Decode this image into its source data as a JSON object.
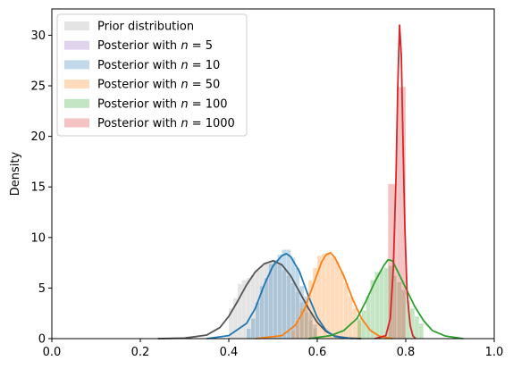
{
  "chart_data": {
    "type": "bar",
    "ylabel": "Density",
    "xlabel": "",
    "xlim": [
      0.0,
      1.0
    ],
    "ylim": [
      0,
      32.6
    ],
    "xticks": [
      "0.0",
      "0.2",
      "0.4",
      "0.6",
      "0.8",
      "1.0"
    ],
    "yticks": [
      "0",
      "5",
      "10",
      "15",
      "20",
      "25",
      "30"
    ],
    "grid": false,
    "legend_position": "top-left",
    "legend": [
      "Prior distribution",
      "Posterior with $n = 5$",
      "Posterior with $n = 10$",
      "Posterior with $n = 50$",
      "Posterior with $n = 100$",
      "Posterior with $n = 1000$"
    ],
    "legend_display": [
      {
        "prefix": "Prior distribution",
        "n": ""
      },
      {
        "prefix": "Posterior with ",
        "n": "5"
      },
      {
        "prefix": "Posterior with ",
        "n": "10"
      },
      {
        "prefix": "Posterior with ",
        "n": "50"
      },
      {
        "prefix": "Posterior with ",
        "n": "100"
      },
      {
        "prefix": "Posterior with ",
        "n": "1000"
      }
    ],
    "series": [
      {
        "color": "#9e9e9e",
        "line_color": "#555555",
        "bins": [
          [
            0.4,
            0.41,
            3.0
          ],
          [
            0.41,
            0.42,
            4.0
          ],
          [
            0.42,
            0.43,
            5.4
          ],
          [
            0.43,
            0.44,
            5.8
          ],
          [
            0.44,
            0.45,
            6.0
          ],
          [
            0.45,
            0.46,
            6.3
          ],
          [
            0.46,
            0.47,
            6.8
          ],
          [
            0.47,
            0.48,
            7.2
          ],
          [
            0.48,
            0.49,
            7.5
          ],
          [
            0.49,
            0.5,
            7.6
          ],
          [
            0.5,
            0.51,
            7.7
          ],
          [
            0.51,
            0.52,
            7.3
          ],
          [
            0.52,
            0.53,
            6.8
          ],
          [
            0.53,
            0.54,
            6.2
          ],
          [
            0.54,
            0.55,
            5.5
          ],
          [
            0.55,
            0.56,
            4.6
          ],
          [
            0.56,
            0.57,
            3.6
          ],
          [
            0.57,
            0.58,
            2.6
          ],
          [
            0.58,
            0.59,
            1.8
          ],
          [
            0.59,
            0.6,
            1.0
          ]
        ],
        "curve": [
          [
            0.24,
            0.0
          ],
          [
            0.3,
            0.05
          ],
          [
            0.35,
            0.35
          ],
          [
            0.38,
            1.1
          ],
          [
            0.4,
            2.2
          ],
          [
            0.42,
            3.7
          ],
          [
            0.44,
            5.3
          ],
          [
            0.46,
            6.6
          ],
          [
            0.48,
            7.4
          ],
          [
            0.5,
            7.7
          ],
          [
            0.52,
            7.3
          ],
          [
            0.54,
            6.2
          ],
          [
            0.56,
            4.6
          ],
          [
            0.58,
            3.0
          ],
          [
            0.6,
            1.6
          ],
          [
            0.62,
            0.7
          ],
          [
            0.64,
            0.25
          ],
          [
            0.67,
            0.05
          ],
          [
            0.7,
            0.0
          ]
        ]
      },
      {
        "color": "#9467bd",
        "line_color": "",
        "bins": [],
        "curve": []
      },
      {
        "color": "#1f77b4",
        "line_color": "#1f77b4",
        "bins": [
          [
            0.44,
            0.45,
            1.0
          ],
          [
            0.45,
            0.46,
            2.0
          ],
          [
            0.46,
            0.47,
            3.6
          ],
          [
            0.47,
            0.48,
            5.2
          ],
          [
            0.48,
            0.49,
            6.0
          ],
          [
            0.49,
            0.5,
            7.4
          ],
          [
            0.5,
            0.51,
            7.8
          ],
          [
            0.51,
            0.52,
            8.3
          ],
          [
            0.52,
            0.53,
            8.8
          ],
          [
            0.53,
            0.54,
            8.8
          ],
          [
            0.54,
            0.55,
            8.0
          ],
          [
            0.55,
            0.56,
            7.0
          ],
          [
            0.56,
            0.57,
            5.2
          ],
          [
            0.57,
            0.58,
            4.2
          ],
          [
            0.58,
            0.59,
            2.6
          ],
          [
            0.59,
            0.6,
            1.4
          ]
        ],
        "curve": [
          [
            0.35,
            0.0
          ],
          [
            0.4,
            0.3
          ],
          [
            0.44,
            1.5
          ],
          [
            0.46,
            3.0
          ],
          [
            0.48,
            5.3
          ],
          [
            0.5,
            7.2
          ],
          [
            0.52,
            8.2
          ],
          [
            0.53,
            8.4
          ],
          [
            0.54,
            8.1
          ],
          [
            0.56,
            6.6
          ],
          [
            0.58,
            4.2
          ],
          [
            0.6,
            2.1
          ],
          [
            0.62,
            0.8
          ],
          [
            0.64,
            0.2
          ],
          [
            0.68,
            0.0
          ]
        ]
      },
      {
        "color": "#ff7f0e",
        "line_color": "#ff7f0e",
        "bins": [
          [
            0.54,
            0.55,
            0.8
          ],
          [
            0.55,
            0.56,
            1.8
          ],
          [
            0.56,
            0.57,
            3.0
          ],
          [
            0.57,
            0.58,
            3.6
          ],
          [
            0.58,
            0.59,
            5.8
          ],
          [
            0.59,
            0.6,
            7.0
          ],
          [
            0.6,
            0.61,
            8.2
          ],
          [
            0.61,
            0.62,
            8.4
          ],
          [
            0.62,
            0.63,
            8.5
          ],
          [
            0.63,
            0.64,
            8.1
          ],
          [
            0.64,
            0.65,
            7.6
          ],
          [
            0.65,
            0.66,
            6.6
          ],
          [
            0.66,
            0.67,
            5.5
          ],
          [
            0.67,
            0.68,
            4.2
          ],
          [
            0.68,
            0.69,
            3.0
          ],
          [
            0.69,
            0.7,
            1.8
          ]
        ],
        "curve": [
          [
            0.46,
            0.0
          ],
          [
            0.52,
            0.3
          ],
          [
            0.55,
            1.3
          ],
          [
            0.57,
            2.8
          ],
          [
            0.59,
            5.2
          ],
          [
            0.61,
            7.6
          ],
          [
            0.62,
            8.3
          ],
          [
            0.63,
            8.5
          ],
          [
            0.64,
            8.0
          ],
          [
            0.66,
            6.2
          ],
          [
            0.68,
            3.9
          ],
          [
            0.7,
            2.0
          ],
          [
            0.72,
            0.8
          ],
          [
            0.74,
            0.25
          ],
          [
            0.77,
            0.0
          ]
        ]
      },
      {
        "color": "#2ca02c",
        "line_color": "#2ca02c",
        "bins": [
          [
            0.69,
            0.7,
            2.0
          ],
          [
            0.7,
            0.71,
            2.8
          ],
          [
            0.71,
            0.72,
            4.2
          ],
          [
            0.72,
            0.73,
            5.8
          ],
          [
            0.73,
            0.74,
            6.6
          ],
          [
            0.74,
            0.75,
            6.8
          ],
          [
            0.75,
            0.76,
            7.0
          ],
          [
            0.76,
            0.77,
            7.2
          ],
          [
            0.77,
            0.78,
            6.2
          ],
          [
            0.78,
            0.79,
            5.6
          ],
          [
            0.79,
            0.8,
            4.8
          ],
          [
            0.8,
            0.81,
            3.8
          ],
          [
            0.81,
            0.82,
            3.0
          ],
          [
            0.82,
            0.83,
            2.2
          ],
          [
            0.83,
            0.84,
            1.5
          ]
        ],
        "curve": [
          [
            0.58,
            0.0
          ],
          [
            0.63,
            0.3
          ],
          [
            0.66,
            0.8
          ],
          [
            0.69,
            2.0
          ],
          [
            0.71,
            3.7
          ],
          [
            0.73,
            5.6
          ],
          [
            0.75,
            7.2
          ],
          [
            0.76,
            7.8
          ],
          [
            0.77,
            7.7
          ],
          [
            0.78,
            6.8
          ],
          [
            0.8,
            5.0
          ],
          [
            0.82,
            3.2
          ],
          [
            0.84,
            1.8
          ],
          [
            0.86,
            0.8
          ],
          [
            0.89,
            0.25
          ],
          [
            0.93,
            0.0
          ]
        ]
      },
      {
        "color": "#d62728",
        "line_color": "#d62728",
        "bins": [
          [
            0.76,
            0.78,
            15.3
          ],
          [
            0.78,
            0.8,
            24.9
          ]
        ],
        "curve": [
          [
            0.73,
            0.0
          ],
          [
            0.755,
            0.3
          ],
          [
            0.765,
            2.0
          ],
          [
            0.772,
            7.0
          ],
          [
            0.778,
            16.0
          ],
          [
            0.782,
            25.0
          ],
          [
            0.786,
            31.0
          ],
          [
            0.79,
            28.0
          ],
          [
            0.794,
            19.0
          ],
          [
            0.798,
            11.0
          ],
          [
            0.803,
            4.5
          ],
          [
            0.81,
            1.3
          ],
          [
            0.816,
            0.3
          ],
          [
            0.822,
            0.0
          ]
        ]
      }
    ]
  }
}
